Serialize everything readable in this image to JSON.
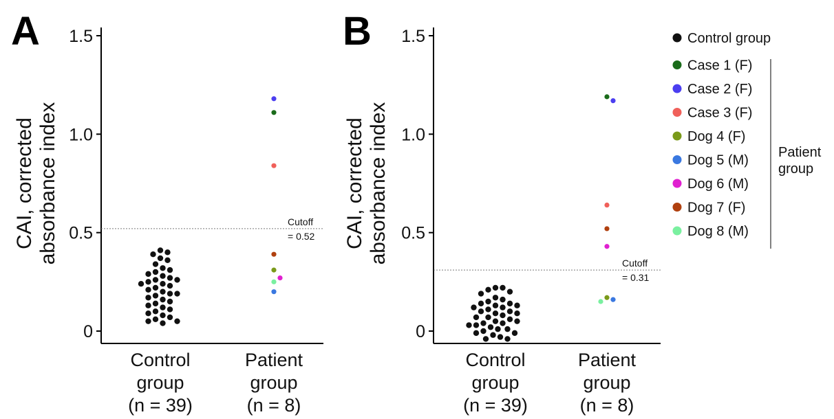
{
  "chart_data": [
    {
      "type": "scatter",
      "panel": "A",
      "ylabel": [
        "CAI, corrected",
        "absorbance index"
      ],
      "ylim": [
        0,
        1.5
      ],
      "yticks": [
        {
          "value": 0,
          "label": "0"
        },
        {
          "value": 0.5,
          "label": "0.5"
        },
        {
          "value": 1.0,
          "label": "1.0"
        },
        {
          "value": 1.5,
          "label": "1.5"
        }
      ],
      "categories": [
        {
          "lines": [
            "Control",
            "group",
            "(n = 39)"
          ]
        },
        {
          "lines": [
            "Patient",
            "group",
            "(n = 8)"
          ]
        }
      ],
      "cutoff": {
        "value": 0.52,
        "label_line1": "Cutoff",
        "label_line2": "= 0.52"
      },
      "control_values": [
        0.41,
        0.4,
        0.39,
        0.37,
        0.36,
        0.34,
        0.32,
        0.31,
        0.3,
        0.29,
        0.28,
        0.27,
        0.26,
        0.26,
        0.25,
        0.24,
        0.24,
        0.23,
        0.22,
        0.21,
        0.2,
        0.19,
        0.19,
        0.18,
        0.17,
        0.16,
        0.15,
        0.14,
        0.13,
        0.12,
        0.11,
        0.1,
        0.09,
        0.08,
        0.07,
        0.06,
        0.05,
        0.05,
        0.04
      ],
      "patients": [
        {
          "name": "Case 2 (F)",
          "value": 1.18
        },
        {
          "name": "Case 1 (F)",
          "value": 1.11
        },
        {
          "name": "Case 3 (F)",
          "value": 0.84
        },
        {
          "name": "Dog 7 (F)",
          "value": 0.39
        },
        {
          "name": "Dog 4 (F)",
          "value": 0.31
        },
        {
          "name": "Dog 8 (M)",
          "value": 0.25
        },
        {
          "name": "Dog 6 (M)",
          "value": 0.27
        },
        {
          "name": "Dog 5 (M)",
          "value": 0.2
        }
      ]
    },
    {
      "type": "scatter",
      "panel": "B",
      "ylabel": [
        "CAI, corrected",
        "absorbance index"
      ],
      "ylim": [
        0,
        1.5
      ],
      "yticks": [
        {
          "value": 0,
          "label": "0"
        },
        {
          "value": 0.5,
          "label": "0.5"
        },
        {
          "value": 1.0,
          "label": "1.0"
        },
        {
          "value": 1.5,
          "label": "1.5"
        }
      ],
      "categories": [
        {
          "lines": [
            "Control",
            "group",
            "(n = 39)"
          ]
        },
        {
          "lines": [
            "Patient",
            "group",
            "(n = 8)"
          ]
        }
      ],
      "cutoff": {
        "value": 0.31,
        "label_line1": "Cutoff",
        "label_line2": "= 0.31"
      },
      "control_values": [
        0.22,
        0.22,
        0.21,
        0.2,
        0.19,
        0.17,
        0.16,
        0.15,
        0.14,
        0.14,
        0.13,
        0.13,
        0.12,
        0.12,
        0.11,
        0.1,
        0.1,
        0.09,
        0.09,
        0.08,
        0.07,
        0.07,
        0.06,
        0.05,
        0.05,
        0.04,
        0.04,
        0.03,
        0.03,
        0.02,
        0.01,
        0.01,
        0.0,
        -0.01,
        -0.01,
        -0.02,
        -0.03,
        -0.04,
        -0.04
      ],
      "patients": [
        {
          "name": "Case 1 (F)",
          "value": 1.19
        },
        {
          "name": "Case 2 (F)",
          "value": 1.17
        },
        {
          "name": "Case 3 (F)",
          "value": 0.64
        },
        {
          "name": "Dog 7 (F)",
          "value": 0.52
        },
        {
          "name": "Dog 6 (M)",
          "value": 0.43
        },
        {
          "name": "Dog 4 (F)",
          "value": 0.17
        },
        {
          "name": "Dog 5 (M)",
          "value": 0.16
        },
        {
          "name": "Dog 8 (M)",
          "value": 0.15
        }
      ]
    }
  ],
  "legend": {
    "control": {
      "label": "Control group",
      "color": "#111111"
    },
    "patient_bracket_label": [
      "Patient",
      "group"
    ],
    "items": [
      {
        "label": "Case 1 (F)",
        "color": "#1a6b1a"
      },
      {
        "label": "Case 2 (F)",
        "color": "#4b3ef0"
      },
      {
        "label": "Case 3 (F)",
        "color": "#f0605a"
      },
      {
        "label": "Dog 4 (F)",
        "color": "#7a9a1a"
      },
      {
        "label": "Dog 5 (M)",
        "color": "#3a78e0"
      },
      {
        "label": "Dog 6 (M)",
        "color": "#e020d0"
      },
      {
        "label": "Dog 7 (F)",
        "color": "#b0400f"
      },
      {
        "label": "Dog 8 (M)",
        "color": "#7af0a0"
      }
    ]
  }
}
